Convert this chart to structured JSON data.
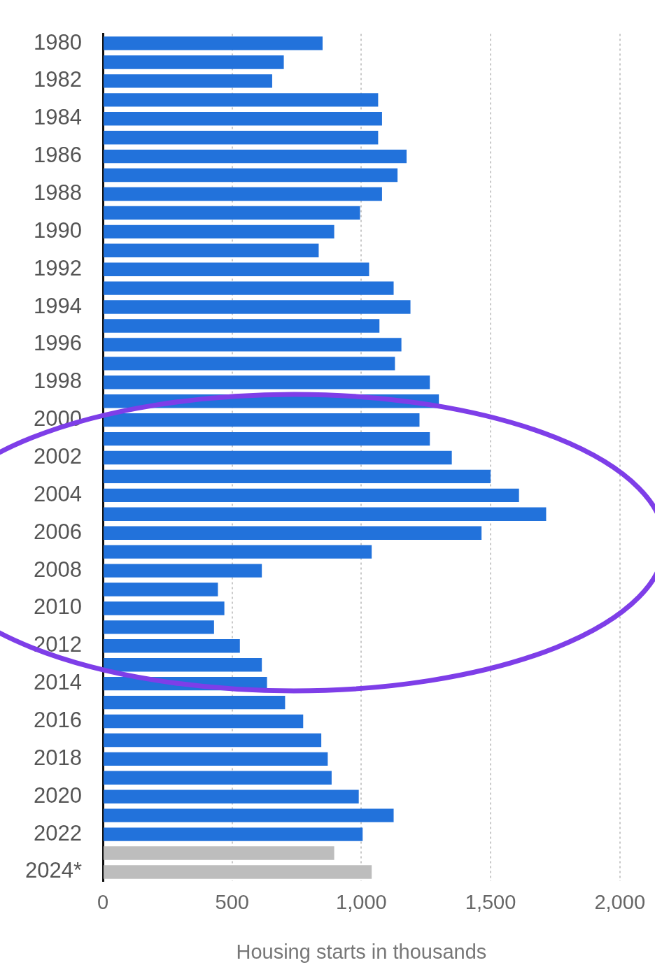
{
  "chart_data": {
    "type": "bar",
    "orientation": "horizontal",
    "xlabel": "Housing starts in thousands",
    "categories": [
      "1980",
      null,
      "1982",
      null,
      "1984",
      null,
      "1986",
      null,
      "1988",
      null,
      "1990",
      null,
      "1992",
      null,
      "1994",
      null,
      "1996",
      null,
      "1998",
      null,
      "2000",
      null,
      "2002",
      null,
      "2004",
      null,
      "2006",
      null,
      "2008",
      null,
      "2010",
      null,
      "2012",
      null,
      "2014",
      null,
      "2016",
      null,
      "2018",
      null,
      "2020",
      null,
      "2022",
      null,
      "2024*"
    ],
    "values": [
      850,
      700,
      655,
      1065,
      1080,
      1065,
      1175,
      1140,
      1080,
      995,
      895,
      835,
      1030,
      1125,
      1190,
      1070,
      1155,
      1130,
      1265,
      1300,
      1225,
      1265,
      1350,
      1500,
      1610,
      1715,
      1465,
      1040,
      615,
      445,
      470,
      430,
      530,
      615,
      635,
      705,
      775,
      845,
      870,
      885,
      990,
      1125,
      1005,
      895,
      1040
    ],
    "colors": [
      "#2272db",
      "#2272db",
      "#2272db",
      "#2272db",
      "#2272db",
      "#2272db",
      "#2272db",
      "#2272db",
      "#2272db",
      "#2272db",
      "#2272db",
      "#2272db",
      "#2272db",
      "#2272db",
      "#2272db",
      "#2272db",
      "#2272db",
      "#2272db",
      "#2272db",
      "#2272db",
      "#2272db",
      "#2272db",
      "#2272db",
      "#2272db",
      "#2272db",
      "#2272db",
      "#2272db",
      "#2272db",
      "#2272db",
      "#2272db",
      "#2272db",
      "#2272db",
      "#2272db",
      "#2272db",
      "#2272db",
      "#2272db",
      "#2272db",
      "#2272db",
      "#2272db",
      "#2272db",
      "#2272db",
      "#2272db",
      "#2272db",
      "#bdbdbd",
      "#bdbdbd"
    ],
    "xlim": [
      0,
      2000
    ],
    "xticks": [
      0,
      500,
      {
        "value": 1000,
        "label": "1,000"
      },
      {
        "value": 1500,
        "label": "1,500"
      },
      {
        "value": 2000,
        "label": "2,000"
      }
    ],
    "grid": "x"
  }
}
